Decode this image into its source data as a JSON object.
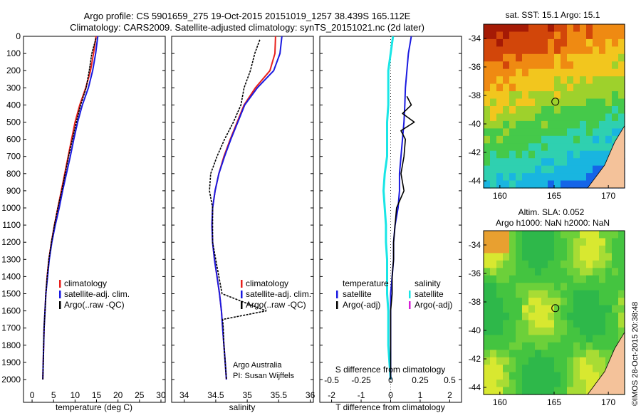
{
  "header": {
    "title_line1": "Argo profile: CS 5901659_275 19-Oct-2015 20151019_1257 38.439S 165.112E",
    "title_line2": "Climatology: CARS2009. Satellite-adjusted climatology: synTS_20151021.nc (2d later)"
  },
  "colors": {
    "climatology": "#e8201c",
    "satellite": "#1a1ae0",
    "argo": "#000000",
    "salinity_satellite": "#19e6e6",
    "salinity_argo": "#d61fd6"
  },
  "chart_data": [
    {
      "type": "line",
      "panel": "temperature",
      "xlabel": "temperature (deg C)",
      "ylabel": "",
      "xlim": [
        -2,
        31
      ],
      "ylim": [
        2000,
        0
      ],
      "xticks": [
        "0",
        "5",
        "10",
        "15",
        "20",
        "25",
        "30"
      ],
      "yticks": [
        "0",
        "100",
        "200",
        "300",
        "400",
        "500",
        "600",
        "700",
        "800",
        "900",
        "1000",
        "1100",
        "1200",
        "1300",
        "1400",
        "1500",
        "1600",
        "1700",
        "1800",
        "1900",
        "2000"
      ],
      "legend": {
        "placement": "lower-right",
        "entries": [
          "climatology",
          "satellite-adj. clim.",
          "Argo(..raw -QC)"
        ]
      },
      "series": [
        {
          "name": "climatology",
          "depth": [
            0,
            100,
            200,
            300,
            400,
            500,
            600,
            700,
            800,
            900,
            1000,
            1100,
            1200,
            1300,
            1400,
            1500,
            1600,
            1700,
            1800,
            1900,
            2000
          ],
          "values": [
            14.9,
            14.3,
            13.6,
            12.5,
            11.1,
            10.0,
            9.2,
            8.4,
            7.6,
            6.8,
            6.0,
            5.2,
            4.5,
            3.9,
            3.5,
            3.2,
            3.0,
            2.8,
            2.7,
            2.6,
            2.5
          ]
        },
        {
          "name": "satellite-adj. clim.",
          "depth": [
            0,
            100,
            200,
            300,
            400,
            500,
            600,
            700,
            800,
            900,
            1000,
            1100,
            1200,
            1300,
            1400,
            1500,
            1600,
            1700,
            1800,
            1900,
            2000
          ],
          "values": [
            15.3,
            14.8,
            14.1,
            13.1,
            11.7,
            10.6,
            9.7,
            8.9,
            8.0,
            7.1,
            6.3,
            5.4,
            4.6,
            4.0,
            3.6,
            3.2,
            3.0,
            2.8,
            2.7,
            2.6,
            2.5
          ]
        },
        {
          "name": "Argo(..raw -QC)",
          "depth": [
            10,
            100,
            200,
            300,
            400,
            500,
            600,
            700,
            800,
            900,
            1000,
            1100,
            1200,
            1300,
            1400,
            1500,
            1600,
            1700,
            1800,
            1900,
            2000
          ],
          "values": [
            14.9,
            13.9,
            13.3,
            12.6,
            11.3,
            10.3,
            9.4,
            8.5,
            7.7,
            6.9,
            6.0,
            5.2,
            4.5,
            3.9,
            3.5,
            3.2,
            3.0,
            2.8,
            2.7,
            2.6,
            2.5
          ]
        }
      ]
    },
    {
      "type": "line",
      "panel": "salinity",
      "xlabel": "salinity",
      "ylabel": "",
      "xlim": [
        33.8,
        36.05
      ],
      "ylim": [
        2000,
        0
      ],
      "xticks": [
        "34",
        "34.5",
        "35",
        "35.5",
        "36"
      ],
      "legend": {
        "placement": "lower-right",
        "entries": [
          "climatology",
          "satellite-adj. clim.",
          "Argo(..raw -QC)"
        ]
      },
      "annotation": [
        "Argo Australia",
        "PI: Susan Wijffels"
      ],
      "series": [
        {
          "name": "climatology",
          "depth": [
            0,
            100,
            200,
            300,
            400,
            500,
            600,
            700,
            800,
            900,
            1000,
            1100,
            1200,
            1300,
            1400,
            1500,
            1600,
            1700,
            1800,
            1900,
            2000
          ],
          "values": [
            35.45,
            35.44,
            35.36,
            35.13,
            34.95,
            34.84,
            34.73,
            34.63,
            34.55,
            34.49,
            34.45,
            34.44,
            34.45,
            34.48,
            34.52,
            34.56,
            34.59,
            34.61,
            34.63,
            34.65,
            34.67
          ]
        },
        {
          "name": "satellite-adj. clim.",
          "depth": [
            0,
            100,
            200,
            300,
            400,
            500,
            600,
            700,
            800,
            900,
            1000,
            1100,
            1200,
            1300,
            1400,
            1500,
            1600,
            1700,
            1800,
            1900,
            2000
          ],
          "values": [
            35.55,
            35.52,
            35.42,
            35.16,
            34.96,
            34.85,
            34.74,
            34.64,
            34.55,
            34.49,
            34.45,
            34.44,
            34.45,
            34.48,
            34.52,
            34.56,
            34.59,
            34.61,
            34.63,
            34.65,
            34.67
          ]
        },
        {
          "name": "Argo(..raw -QC)",
          "depth": [
            20,
            100,
            200,
            300,
            400,
            500,
            600,
            700,
            800,
            900,
            1000,
            1100,
            1200,
            1300,
            1400,
            1500,
            1600,
            1650,
            1700,
            1800,
            1900,
            2000
          ],
          "values": [
            35.2,
            35.12,
            35.05,
            34.95,
            34.9,
            34.78,
            34.64,
            34.52,
            34.42,
            34.4,
            34.45,
            34.45,
            34.45,
            34.5,
            34.55,
            34.6,
            35.3,
            34.61,
            34.62,
            34.63,
            34.65,
            34.67
          ]
        }
      ]
    },
    {
      "type": "line",
      "panel": "difference",
      "xlabel": "T difference from climatology",
      "xlabel_top": "S difference from climatology",
      "xlim": [
        -2.4,
        2.4
      ],
      "ylim": [
        2000,
        0
      ],
      "xticks": [
        "-2",
        "-1",
        "0",
        "1",
        "2"
      ],
      "xticks_salinity": [
        "-0.5",
        "-0.25",
        "0",
        "0.25",
        "0.5"
      ],
      "legend": {
        "placement": "lower",
        "temperature_heading": "temperature",
        "salinity_heading": "salinity",
        "entries": [
          "satellite",
          "Argo(-adj)",
          "satellite",
          "Argo(-adj)"
        ]
      },
      "series": [
        {
          "name": "temperature satellite",
          "depth": [
            0,
            100,
            200,
            300,
            400,
            500,
            600,
            700,
            800,
            900,
            1000,
            1100,
            1200,
            1300,
            1400,
            1500,
            1600,
            1700,
            1800,
            1900,
            2000
          ],
          "values": [
            0.7,
            0.6,
            0.55,
            0.5,
            0.48,
            0.45,
            0.4,
            0.35,
            0.3,
            0.3,
            0.25,
            0.15,
            0.1,
            0.1,
            0.05,
            0.0,
            0.0,
            0.0,
            0.0,
            0.0,
            0.0
          ]
        },
        {
          "name": "temperature Argo(-adj)",
          "depth": [
            350,
            400,
            450,
            500,
            550,
            600,
            700,
            800,
            900,
            1000,
            1100,
            1200,
            1300,
            1400,
            1500,
            1600,
            1700,
            1800,
            1900,
            2000
          ],
          "values": [
            0.55,
            0.7,
            0.4,
            0.8,
            0.35,
            0.5,
            0.45,
            0.35,
            0.45,
            0.2,
            0.15,
            0.1,
            0.1,
            0.05,
            0.05,
            0.0,
            0.0,
            0.0,
            0.0,
            0.0
          ]
        },
        {
          "name": "salinity satellite",
          "depth": [
            0,
            100,
            200,
            300,
            400,
            500,
            600,
            700,
            800,
            900,
            1000,
            1100,
            1200,
            1300,
            1400,
            1500,
            1600,
            1700,
            1800,
            1900,
            2000
          ],
          "values": [
            0.02,
            0.0,
            -0.02,
            -0.02,
            -0.02,
            -0.03,
            -0.03,
            -0.03,
            -0.05,
            -0.06,
            -0.05,
            -0.04,
            -0.04,
            -0.03,
            -0.03,
            -0.03,
            -0.02,
            -0.02,
            -0.02,
            -0.01,
            0.0
          ]
        }
      ]
    },
    {
      "type": "heatmap",
      "panel": "sst-map",
      "title": "sat. SST: 15.1 Argo: 15.1",
      "xlim": [
        158.5,
        171.5
      ],
      "ylim": [
        -44.5,
        -33
      ],
      "xticks": [
        "160",
        "165",
        "170"
      ],
      "yticks": [
        "-34",
        "-36",
        "-38",
        "-40",
        "-42",
        "-44"
      ],
      "marker": {
        "lon": 165.112,
        "lat": -38.439
      }
    },
    {
      "type": "heatmap",
      "panel": "sla-map",
      "title": "Altim. SLA: 0.052",
      "subtitle": "Argo h1000: NaN h2000: NaN",
      "xlim": [
        158.5,
        171.5
      ],
      "ylim": [
        -44.5,
        -33
      ],
      "xticks": [
        "160",
        "165",
        "170"
      ],
      "yticks": [
        "-34",
        "-36",
        "-38",
        "-40",
        "-42",
        "-44"
      ],
      "marker": {
        "lon": 165.112,
        "lat": -38.439
      }
    }
  ],
  "credit": "©IMOS 28-Oct-2015 20:38:48"
}
